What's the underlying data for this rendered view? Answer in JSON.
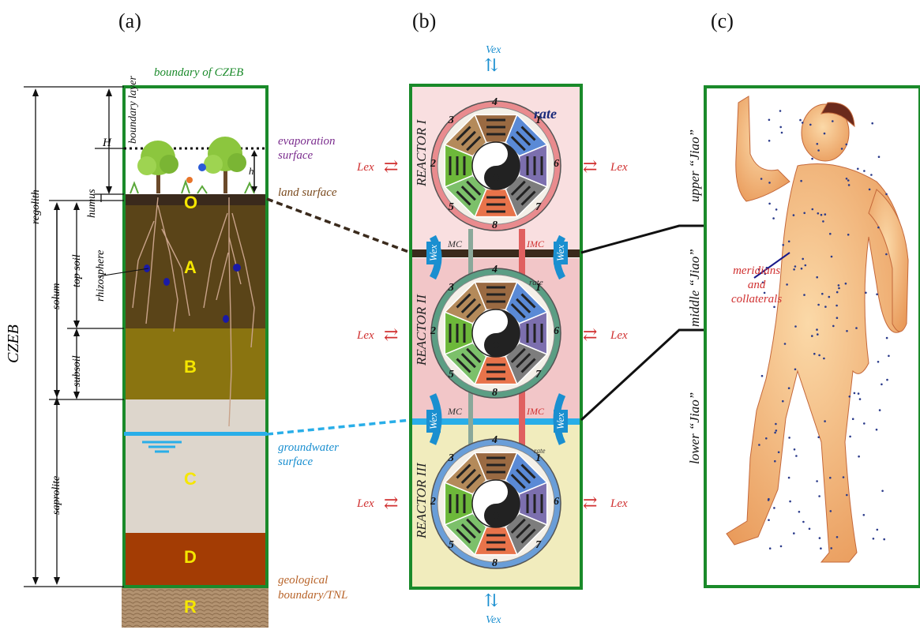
{
  "panels": {
    "a": "(a)",
    "b": "(b)",
    "c": "(c)"
  },
  "panel_a": {
    "boundary_label": "boundary of CZEB",
    "boundary_layer": "boundary layer",
    "H": "H",
    "h": "h",
    "evaporation_surface": [
      "evaporation",
      "surface"
    ],
    "land_surface": "land surface",
    "groundwater_surface": [
      "groundwater",
      "surface"
    ],
    "geological_boundary": [
      "geological",
      "boundary/TNL"
    ],
    "humus": "humus",
    "top_soil": "top soil",
    "subsoil": "subsoil",
    "solum": "solum",
    "saprolite": "saprolite",
    "regolith": "regolith",
    "czeb": "CZEB",
    "rhizosphere": "rhizosphere",
    "horizons": [
      "O",
      "A",
      "B",
      "C",
      "D",
      "R"
    ],
    "colors": {
      "O": "#3a2a1c",
      "A": "#5a4418",
      "B": "#8a7410",
      "C": "#ddd6cc",
      "D": "#a33c04",
      "R": "#b29270"
    }
  },
  "panel_b": {
    "reactors": [
      "REACTOR I",
      "REACTOR II",
      "REACTOR III"
    ],
    "vex": "Vex",
    "lex": "Lex",
    "wex": "Wex",
    "mc": "MC",
    "imc": "IMC",
    "rate": "rate",
    "trigram_numbers": [
      "4",
      "1",
      "6",
      "7",
      "8",
      "5",
      "2",
      "3"
    ],
    "trigram_colors": [
      "#9a6a42",
      "#5a8ad6",
      "#7c6fae",
      "#7d7d7d",
      "#e8734a",
      "#7cc06a",
      "#6db83a",
      "#b48a5a"
    ],
    "ring_colors": [
      "#e98b8e",
      "#5b9e84",
      "#6a9ed8"
    ],
    "zone_colors": [
      "#f9dfe0",
      "#f2c6c8",
      "#f1ecbd"
    ]
  },
  "panel_c": {
    "upper": "upper “Jiao”",
    "middle": "middle “Jiao”",
    "lower": "lower “Jiao”",
    "meridians": [
      "meridians",
      "and",
      "collaterals"
    ]
  }
}
